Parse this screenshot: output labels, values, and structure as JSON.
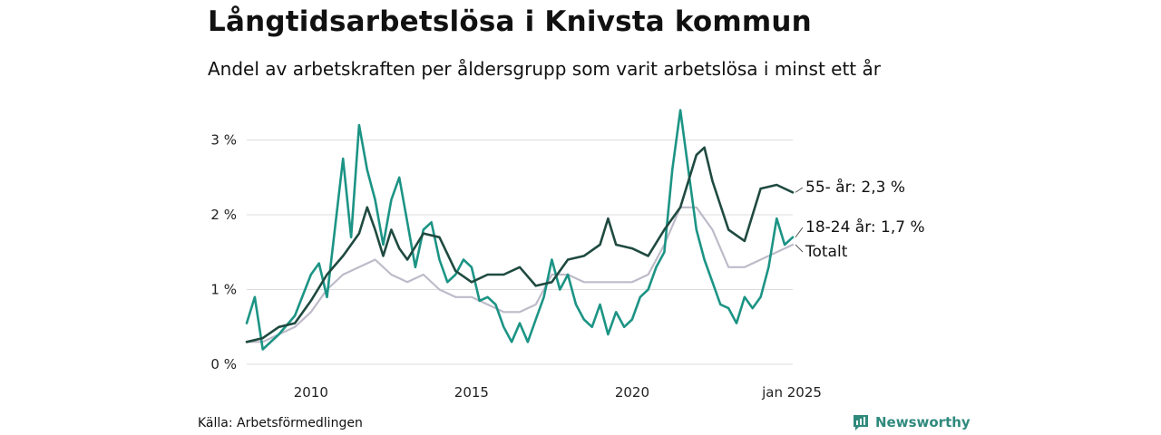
{
  "header": {
    "title": "Långtidsarbetslösa i Knivsta kommun",
    "subtitle": "Andel av arbetskraften per åldersgrupp som varit arbetslösa i minst ett år"
  },
  "footer": {
    "source": "Källa: Arbetsförmedlingen",
    "brand": "Newsworthy"
  },
  "colors": {
    "age_55": "#1f4a40",
    "age_18_24": "#1c9485",
    "total": "#bdbbc9",
    "grid": "#dcdcdc",
    "brand": "#2f8a7d"
  },
  "chart_data": {
    "type": "line",
    "y_ticks": [
      0,
      1,
      2,
      3
    ],
    "y_tick_labels": [
      "0 %",
      "1 %",
      "2 %",
      "3 %"
    ],
    "ylim": [
      0,
      3.5
    ],
    "xlim": [
      "2008-01",
      "2025-01"
    ],
    "x_ticks": [
      "2010-01",
      "2015-01",
      "2020-01",
      "2025-01"
    ],
    "x_tick_labels": [
      "2010",
      "2015",
      "2020",
      "jan 2025"
    ],
    "grid": true,
    "series": [
      {
        "key": "total",
        "name": "Totalt",
        "end_label": "Totalt",
        "points": [
          [
            "2008-01",
            0.3
          ],
          [
            "2008-07",
            0.3
          ],
          [
            "2009-01",
            0.4
          ],
          [
            "2009-07",
            0.5
          ],
          [
            "2010-01",
            0.7
          ],
          [
            "2010-07",
            1.0
          ],
          [
            "2011-01",
            1.2
          ],
          [
            "2011-07",
            1.3
          ],
          [
            "2012-01",
            1.4
          ],
          [
            "2012-07",
            1.2
          ],
          [
            "2013-01",
            1.1
          ],
          [
            "2013-07",
            1.2
          ],
          [
            "2014-01",
            1.0
          ],
          [
            "2014-07",
            0.9
          ],
          [
            "2015-01",
            0.9
          ],
          [
            "2015-07",
            0.8
          ],
          [
            "2016-01",
            0.7
          ],
          [
            "2016-07",
            0.7
          ],
          [
            "2017-01",
            0.8
          ],
          [
            "2017-07",
            1.2
          ],
          [
            "2018-01",
            1.2
          ],
          [
            "2018-07",
            1.1
          ],
          [
            "2019-01",
            1.1
          ],
          [
            "2019-07",
            1.1
          ],
          [
            "2020-01",
            1.1
          ],
          [
            "2020-07",
            1.2
          ],
          [
            "2021-01",
            1.6
          ],
          [
            "2021-07",
            2.1
          ],
          [
            "2022-01",
            2.1
          ],
          [
            "2022-07",
            1.8
          ],
          [
            "2023-01",
            1.3
          ],
          [
            "2023-07",
            1.3
          ],
          [
            "2024-01",
            1.4
          ],
          [
            "2024-07",
            1.5
          ],
          [
            "2025-01",
            1.6
          ]
        ]
      },
      {
        "key": "age_18_24",
        "name": "18-24 år",
        "end_label": "18-24 år: 1,7 %",
        "points": [
          [
            "2008-01",
            0.55
          ],
          [
            "2008-04",
            0.9
          ],
          [
            "2008-07",
            0.2
          ],
          [
            "2009-01",
            0.4
          ],
          [
            "2009-07",
            0.65
          ],
          [
            "2010-01",
            1.2
          ],
          [
            "2010-04",
            1.35
          ],
          [
            "2010-07",
            0.9
          ],
          [
            "2011-01",
            2.75
          ],
          [
            "2011-04",
            1.7
          ],
          [
            "2011-07",
            3.2
          ],
          [
            "2011-10",
            2.6
          ],
          [
            "2012-01",
            2.2
          ],
          [
            "2012-04",
            1.6
          ],
          [
            "2012-07",
            2.2
          ],
          [
            "2012-10",
            2.5
          ],
          [
            "2013-01",
            1.9
          ],
          [
            "2013-04",
            1.3
          ],
          [
            "2013-07",
            1.8
          ],
          [
            "2013-10",
            1.9
          ],
          [
            "2014-01",
            1.4
          ],
          [
            "2014-04",
            1.1
          ],
          [
            "2014-07",
            1.2
          ],
          [
            "2014-10",
            1.4
          ],
          [
            "2015-01",
            1.3
          ],
          [
            "2015-04",
            0.85
          ],
          [
            "2015-07",
            0.9
          ],
          [
            "2015-10",
            0.8
          ],
          [
            "2016-01",
            0.5
          ],
          [
            "2016-04",
            0.3
          ],
          [
            "2016-07",
            0.55
          ],
          [
            "2016-10",
            0.3
          ],
          [
            "2017-01",
            0.6
          ],
          [
            "2017-04",
            0.9
          ],
          [
            "2017-07",
            1.4
          ],
          [
            "2017-10",
            1.0
          ],
          [
            "2018-01",
            1.2
          ],
          [
            "2018-04",
            0.8
          ],
          [
            "2018-07",
            0.6
          ],
          [
            "2018-10",
            0.5
          ],
          [
            "2019-01",
            0.8
          ],
          [
            "2019-04",
            0.4
          ],
          [
            "2019-07",
            0.7
          ],
          [
            "2019-10",
            0.5
          ],
          [
            "2020-01",
            0.6
          ],
          [
            "2020-04",
            0.9
          ],
          [
            "2020-07",
            1.0
          ],
          [
            "2020-10",
            1.3
          ],
          [
            "2021-01",
            1.5
          ],
          [
            "2021-04",
            2.6
          ],
          [
            "2021-07",
            3.4
          ],
          [
            "2021-10",
            2.6
          ],
          [
            "2022-01",
            1.8
          ],
          [
            "2022-04",
            1.4
          ],
          [
            "2022-07",
            1.1
          ],
          [
            "2022-10",
            0.8
          ],
          [
            "2023-01",
            0.75
          ],
          [
            "2023-04",
            0.55
          ],
          [
            "2023-07",
            0.9
          ],
          [
            "2023-10",
            0.75
          ],
          [
            "2024-01",
            0.9
          ],
          [
            "2024-04",
            1.3
          ],
          [
            "2024-07",
            1.95
          ],
          [
            "2024-10",
            1.6
          ],
          [
            "2025-01",
            1.7
          ]
        ]
      },
      {
        "key": "age_55",
        "name": "55- år",
        "end_label": "55- år: 2,3 %",
        "points": [
          [
            "2008-01",
            0.3
          ],
          [
            "2008-07",
            0.35
          ],
          [
            "2009-01",
            0.5
          ],
          [
            "2009-07",
            0.55
          ],
          [
            "2010-01",
            0.85
          ],
          [
            "2010-07",
            1.2
          ],
          [
            "2011-01",
            1.45
          ],
          [
            "2011-07",
            1.75
          ],
          [
            "2011-10",
            2.1
          ],
          [
            "2012-01",
            1.8
          ],
          [
            "2012-04",
            1.45
          ],
          [
            "2012-07",
            1.8
          ],
          [
            "2012-10",
            1.55
          ],
          [
            "2013-01",
            1.4
          ],
          [
            "2013-07",
            1.75
          ],
          [
            "2014-01",
            1.7
          ],
          [
            "2014-07",
            1.25
          ],
          [
            "2015-01",
            1.1
          ],
          [
            "2015-07",
            1.2
          ],
          [
            "2016-01",
            1.2
          ],
          [
            "2016-07",
            1.3
          ],
          [
            "2017-01",
            1.05
          ],
          [
            "2017-07",
            1.1
          ],
          [
            "2018-01",
            1.4
          ],
          [
            "2018-07",
            1.45
          ],
          [
            "2019-01",
            1.6
          ],
          [
            "2019-04",
            1.95
          ],
          [
            "2019-07",
            1.6
          ],
          [
            "2020-01",
            1.55
          ],
          [
            "2020-07",
            1.45
          ],
          [
            "2021-01",
            1.8
          ],
          [
            "2021-07",
            2.1
          ],
          [
            "2022-01",
            2.8
          ],
          [
            "2022-04",
            2.9
          ],
          [
            "2022-07",
            2.45
          ],
          [
            "2023-01",
            1.8
          ],
          [
            "2023-07",
            1.65
          ],
          [
            "2024-01",
            2.35
          ],
          [
            "2024-07",
            2.4
          ],
          [
            "2025-01",
            2.3
          ]
        ]
      }
    ]
  }
}
